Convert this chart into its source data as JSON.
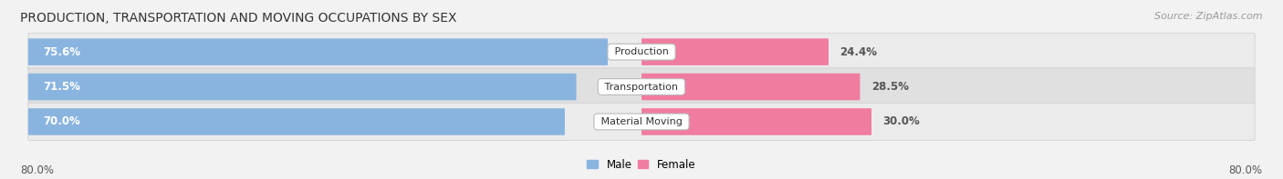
{
  "title": "PRODUCTION, TRANSPORTATION AND MOVING OCCUPATIONS BY SEX",
  "source": "Source: ZipAtlas.com",
  "categories": [
    "Production",
    "Transportation",
    "Material Moving"
  ],
  "male_values": [
    75.6,
    71.5,
    70.0
  ],
  "female_values": [
    24.4,
    28.5,
    30.0
  ],
  "male_color": "#8ab4e0",
  "female_color": "#f07ca0",
  "background_color": "#f2f2f2",
  "bar_bg_color": "#e0e0e0",
  "bar_bg_color2": "#ebebeb",
  "title_fontsize": 10,
  "source_fontsize": 8,
  "bar_label_fontsize": 8.5,
  "cat_label_fontsize": 8,
  "axis_range": 80.0,
  "axis_label": "80.0%"
}
